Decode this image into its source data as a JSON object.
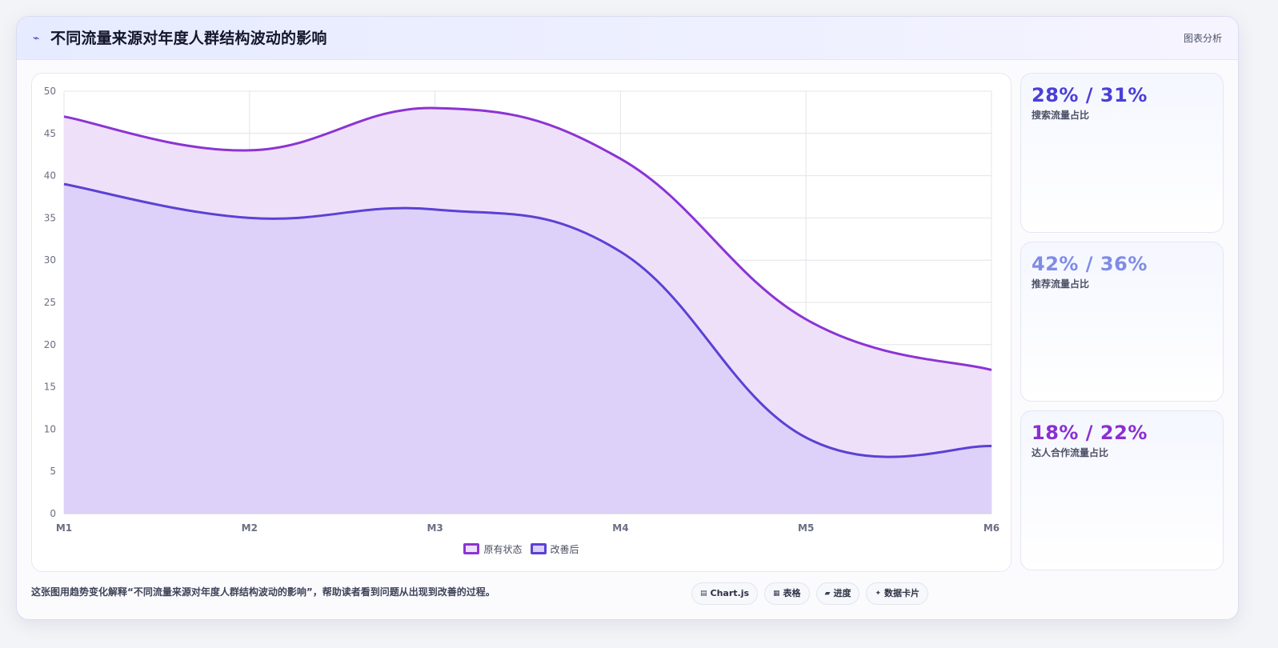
{
  "header": {
    "icon": "lightning-icon",
    "title": "不同流量来源对年度人群结构波动的影响",
    "tag": "图表分析"
  },
  "chart_data": {
    "type": "area",
    "x": [
      "M1",
      "M2",
      "M3",
      "M4",
      "M5",
      "M6"
    ],
    "ylim": [
      0,
      50
    ],
    "yticks": [
      0,
      5,
      10,
      15,
      20,
      25,
      30,
      35,
      40,
      45,
      50
    ],
    "grid": true,
    "legend_position": "bottom-center",
    "series": [
      {
        "name": "原有状态",
        "values": [
          47,
          43,
          48,
          42,
          23,
          17
        ],
        "color": "#8b34d4",
        "fill": "#efe0fa"
      },
      {
        "name": "改善后",
        "values": [
          39,
          35,
          36,
          31,
          9,
          8
        ],
        "color": "#5a42d4",
        "fill": "#dbcff8"
      }
    ]
  },
  "kpis": [
    {
      "value": "28% / 31%",
      "label": "搜索流量占比",
      "color": "#4a3fd6"
    },
    {
      "value": "42% / 36%",
      "label": "推荐流量占比",
      "color": "#7f8ce6"
    },
    {
      "value": "18% / 22%",
      "label": "达人合作流量占比",
      "color": "#8a2fd0"
    }
  ],
  "footer": {
    "description": "这张图用趋势变化解释“不同流量来源对年度人群结构波动的影响”，帮助读者看到问题从出现到改善的过程。",
    "chips": [
      {
        "icon": "chart-icon",
        "glyph": "▤",
        "label": "Chart.js"
      },
      {
        "icon": "table-icon",
        "glyph": "▦",
        "label": "表格"
      },
      {
        "icon": "progress-icon",
        "glyph": "▰",
        "label": "进度"
      },
      {
        "icon": "sparkle-icon",
        "glyph": "✦",
        "label": "数据卡片"
      }
    ]
  }
}
